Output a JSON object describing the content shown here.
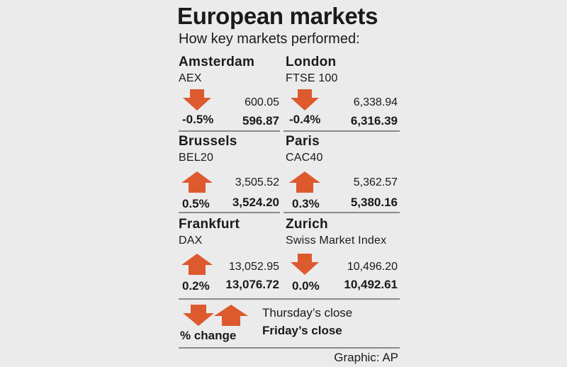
{
  "title": "European markets",
  "subtitle": "How key markets performed:",
  "markets": [
    {
      "city": "Amsterdam",
      "index": "AEX",
      "direction": "down",
      "change": "-0.5%",
      "thursday_close": "600.05",
      "friday_close": "596.87"
    },
    {
      "city": "London",
      "index": "FTSE 100",
      "direction": "down",
      "change": "-0.4%",
      "thursday_close": "6,338.94",
      "friday_close": "6,316.39"
    },
    {
      "city": "Brussels",
      "index": "BEL20",
      "direction": "up",
      "change": "0.5%",
      "thursday_close": "3,505.52",
      "friday_close": "3,524.20"
    },
    {
      "city": "Paris",
      "index": "CAC40",
      "direction": "up",
      "change": "0.3%",
      "thursday_close": "5,362.57",
      "friday_close": "5,380.16"
    },
    {
      "city": "Frankfurt",
      "index": "DAX",
      "direction": "up",
      "change": "0.2%",
      "thursday_close": "13,052.95",
      "friday_close": "13,076.72"
    },
    {
      "city": "Zurich",
      "index": "Swiss Market Index",
      "direction": "down",
      "change": "0.0%",
      "thursday_close": "10,496.20",
      "friday_close": "10,492.61"
    }
  ],
  "legend": {
    "pct_label": "% change",
    "thursday_label": "Thursday’s close",
    "friday_label": "Friday’s close"
  },
  "credit": "Graphic: AP",
  "colors": {
    "arrow": "#dd5a2e",
    "background": "#ebebeb",
    "rule": "#8a8a8a"
  }
}
